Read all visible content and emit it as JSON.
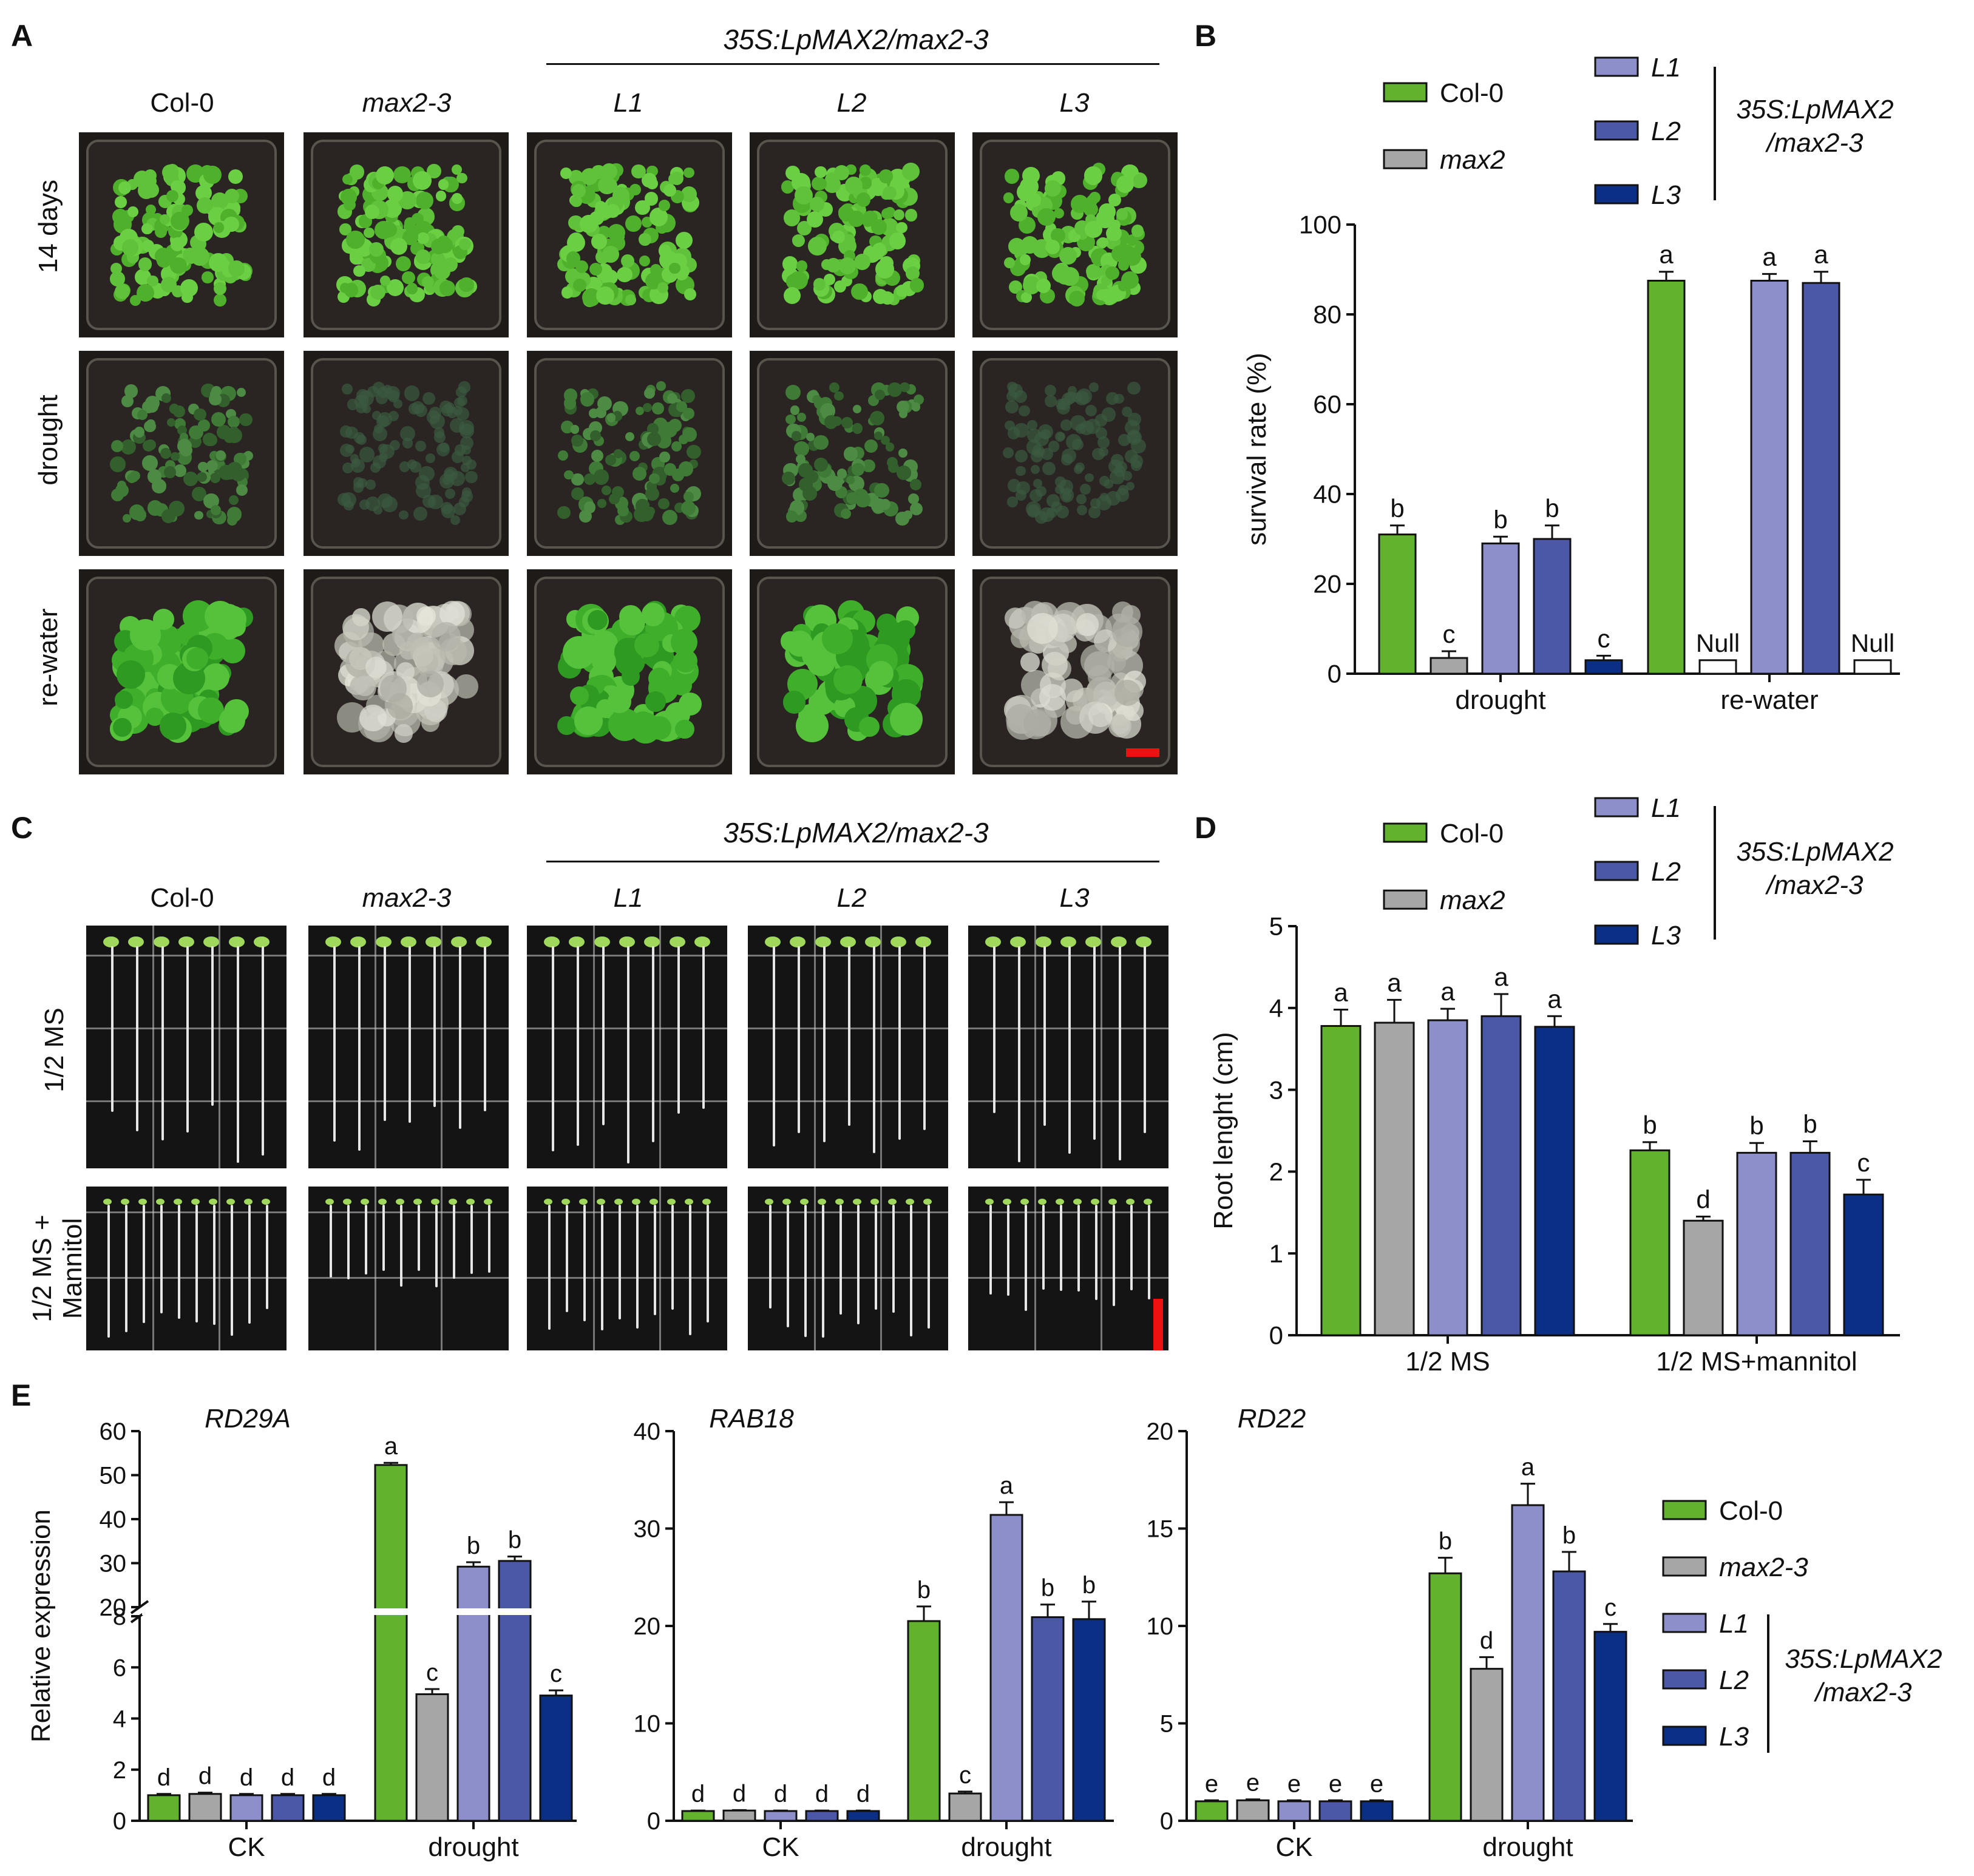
{
  "panels": {
    "A": {
      "letter": "A",
      "group_label": "35S:LpMAX2/max2-3",
      "columns": [
        "Col-0",
        "max2-3",
        "L1",
        "L2",
        "L3"
      ],
      "rows": [
        "14 days",
        "drought",
        "re-water"
      ]
    },
    "C": {
      "letter": "C",
      "group_label": "35S:LpMAX2/max2-3",
      "columns": [
        "Col-0",
        "max2-3",
        "L1",
        "L2",
        "L3"
      ],
      "rows": [
        "1/2 MS",
        "1/2 MS + Mannitol"
      ]
    },
    "B": {
      "letter": "B"
    },
    "D": {
      "letter": "D"
    },
    "E": {
      "letter": "E"
    }
  },
  "colors": {
    "Col-0": "#63b22e",
    "max2": "#a6a6a6",
    "L1": "#8c8fc9",
    "L2": "#4b57a7",
    "L3": "#0c2f86",
    "red_scale": "#e11"
  },
  "chart_data": [
    {
      "id": "B",
      "type": "bar",
      "ylabel": "survival rate (%)",
      "ylim": [
        0,
        100
      ],
      "yticks": [
        0,
        20,
        40,
        60,
        80,
        100
      ],
      "categories": [
        "drought",
        "re-water"
      ],
      "legend": {
        "entries": [
          "Col-0",
          "max2",
          "L1",
          "L2",
          "L3"
        ],
        "group_label_1": "35S:LpMAX2",
        "group_label_2": "/max2-3"
      },
      "series": [
        {
          "name": "Col-0",
          "values": [
            31,
            87.5
          ],
          "errors": [
            2,
            2
          ],
          "letters": [
            "b",
            "a"
          ]
        },
        {
          "name": "max2",
          "values": [
            3.5,
            3
          ],
          "errors": [
            1.5,
            0
          ],
          "letters": [
            "c",
            "Null"
          ]
        },
        {
          "name": "L1",
          "values": [
            29,
            87.5
          ],
          "errors": [
            1.5,
            1.5
          ],
          "letters": [
            "b",
            "a"
          ]
        },
        {
          "name": "L2",
          "values": [
            30,
            87
          ],
          "errors": [
            3,
            2.5
          ],
          "letters": [
            "b",
            "a"
          ]
        },
        {
          "name": "L3",
          "values": [
            3,
            3
          ],
          "errors": [
            1,
            0
          ],
          "letters": [
            "c",
            "Null"
          ]
        }
      ]
    },
    {
      "id": "D",
      "type": "bar",
      "ylabel": "Root lenght (cm)",
      "ylim": [
        0,
        5
      ],
      "yticks": [
        0,
        1,
        2,
        3,
        4,
        5
      ],
      "categories": [
        "1/2 MS",
        "1/2 MS+mannitol"
      ],
      "legend": {
        "entries": [
          "Col-0",
          "max2",
          "L1",
          "L2",
          "L3"
        ],
        "group_label_1": "35S:LpMAX2",
        "group_label_2": "/max2-3"
      },
      "series": [
        {
          "name": "Col-0",
          "values": [
            3.78,
            2.26
          ],
          "errors": [
            0.2,
            0.1
          ],
          "letters": [
            "a",
            "b"
          ]
        },
        {
          "name": "max2",
          "values": [
            3.82,
            1.4
          ],
          "errors": [
            0.28,
            0.05
          ],
          "letters": [
            "a",
            "d"
          ]
        },
        {
          "name": "L1",
          "values": [
            3.85,
            2.23
          ],
          "errors": [
            0.14,
            0.12
          ],
          "letters": [
            "a",
            "b"
          ]
        },
        {
          "name": "L2",
          "values": [
            3.9,
            2.23
          ],
          "errors": [
            0.27,
            0.14
          ],
          "letters": [
            "a",
            "b"
          ]
        },
        {
          "name": "L3",
          "values": [
            3.77,
            1.72
          ],
          "errors": [
            0.13,
            0.18
          ],
          "letters": [
            "a",
            "c"
          ]
        }
      ]
    },
    {
      "id": "E1",
      "type": "bar",
      "title": "RD29A",
      "ylabel": "Relative expression",
      "broken_axis": {
        "lower": [
          0,
          8
        ],
        "upper": [
          20,
          60
        ]
      },
      "yticks_lower": [
        0,
        2,
        4,
        6,
        8
      ],
      "yticks_upper": [
        20,
        30,
        40,
        50,
        60
      ],
      "categories": [
        "CK",
        "drought"
      ],
      "series": [
        {
          "name": "Col-0",
          "values": [
            1.0,
            52.3
          ],
          "errors": [
            0.05,
            0.5
          ],
          "letters": [
            "d",
            "a"
          ]
        },
        {
          "name": "max2-3",
          "values": [
            1.05,
            4.95
          ],
          "errors": [
            0.05,
            0.2
          ],
          "letters": [
            "d",
            "c"
          ]
        },
        {
          "name": "L1",
          "values": [
            1.0,
            29.2
          ],
          "errors": [
            0.05,
            1.0
          ],
          "letters": [
            "d",
            "b"
          ]
        },
        {
          "name": "L2",
          "values": [
            1.0,
            30.5
          ],
          "errors": [
            0.05,
            1.0
          ],
          "letters": [
            "d",
            "b"
          ]
        },
        {
          "name": "L3",
          "values": [
            1.0,
            4.9
          ],
          "errors": [
            0.05,
            0.2
          ],
          "letters": [
            "d",
            "c"
          ]
        }
      ]
    },
    {
      "id": "E2",
      "type": "bar",
      "title": "RAB18",
      "ylim": [
        0,
        40
      ],
      "yticks": [
        0,
        10,
        20,
        30,
        40
      ],
      "categories": [
        "CK",
        "drought"
      ],
      "series": [
        {
          "name": "Col-0",
          "values": [
            1.0,
            20.5
          ],
          "errors": [
            0.05,
            1.5
          ],
          "letters": [
            "d",
            "b"
          ]
        },
        {
          "name": "max2-3",
          "values": [
            1.05,
            2.8
          ],
          "errors": [
            0.05,
            0.2
          ],
          "letters": [
            "d",
            "c"
          ]
        },
        {
          "name": "L1",
          "values": [
            1.0,
            31.4
          ],
          "errors": [
            0.05,
            1.3
          ],
          "letters": [
            "d",
            "a"
          ]
        },
        {
          "name": "L2",
          "values": [
            1.0,
            20.9
          ],
          "errors": [
            0.05,
            1.3
          ],
          "letters": [
            "d",
            "b"
          ]
        },
        {
          "name": "L3",
          "values": [
            1.0,
            20.7
          ],
          "errors": [
            0.05,
            1.8
          ],
          "letters": [
            "d",
            "b"
          ]
        }
      ]
    },
    {
      "id": "E3",
      "type": "bar",
      "title": "RD22",
      "ylim": [
        0,
        20
      ],
      "yticks": [
        0,
        5,
        10,
        15,
        20
      ],
      "categories": [
        "CK",
        "drought"
      ],
      "legend": {
        "entries": [
          "Col-0",
          "max2-3",
          "L1",
          "L2",
          "L3"
        ],
        "group_label_1": "35S:LpMAX2",
        "group_label_2": "/max2-3"
      },
      "series": [
        {
          "name": "Col-0",
          "values": [
            1.0,
            12.7
          ],
          "errors": [
            0.05,
            0.8
          ],
          "letters": [
            "e",
            "b"
          ]
        },
        {
          "name": "max2-3",
          "values": [
            1.05,
            7.8
          ],
          "errors": [
            0.05,
            0.6
          ],
          "letters": [
            "e",
            "d"
          ]
        },
        {
          "name": "L1",
          "values": [
            1.0,
            16.2
          ],
          "errors": [
            0.05,
            1.1
          ],
          "letters": [
            "e",
            "a"
          ]
        },
        {
          "name": "L2",
          "values": [
            1.0,
            12.8
          ],
          "errors": [
            0.05,
            1.0
          ],
          "letters": [
            "e",
            "b"
          ]
        },
        {
          "name": "L3",
          "values": [
            1.0,
            9.7
          ],
          "errors": [
            0.05,
            0.4
          ],
          "letters": [
            "e",
            "c"
          ]
        }
      ]
    }
  ]
}
